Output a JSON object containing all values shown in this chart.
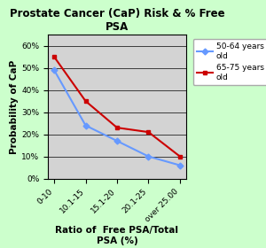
{
  "title": "Prostate Cancer (CaP) Risk & % Free\nPSA",
  "xlabel": "Ratio of  Free PSA/Total\nPSA (%)",
  "ylabel": "Probability of CaP",
  "x_labels": [
    "0-10",
    "10.1-15",
    "15.1-20",
    "20.1-25",
    "over 25.00"
  ],
  "series": [
    {
      "label": "50-64 years\nold",
      "color": "#6699FF",
      "marker": "D",
      "values": [
        0.49,
        0.24,
        0.17,
        0.1,
        0.06
      ]
    },
    {
      "label": "65-75 years\nold",
      "color": "#CC0000",
      "marker": "s",
      "values": [
        0.55,
        0.35,
        0.23,
        0.21,
        0.1
      ]
    }
  ],
  "ylim": [
    0,
    0.65
  ],
  "yticks": [
    0.0,
    0.1,
    0.2,
    0.3,
    0.4,
    0.5,
    0.6
  ],
  "ytick_labels": [
    "0%",
    "10%",
    "20%",
    "30%",
    "40%",
    "50%",
    "60%"
  ],
  "background_color": "#ccffcc",
  "plot_bg_color": "#d3d3d3",
  "title_fontsize": 8.5,
  "axis_label_fontsize": 7.5,
  "tick_fontsize": 6.5,
  "legend_fontsize": 6.5
}
